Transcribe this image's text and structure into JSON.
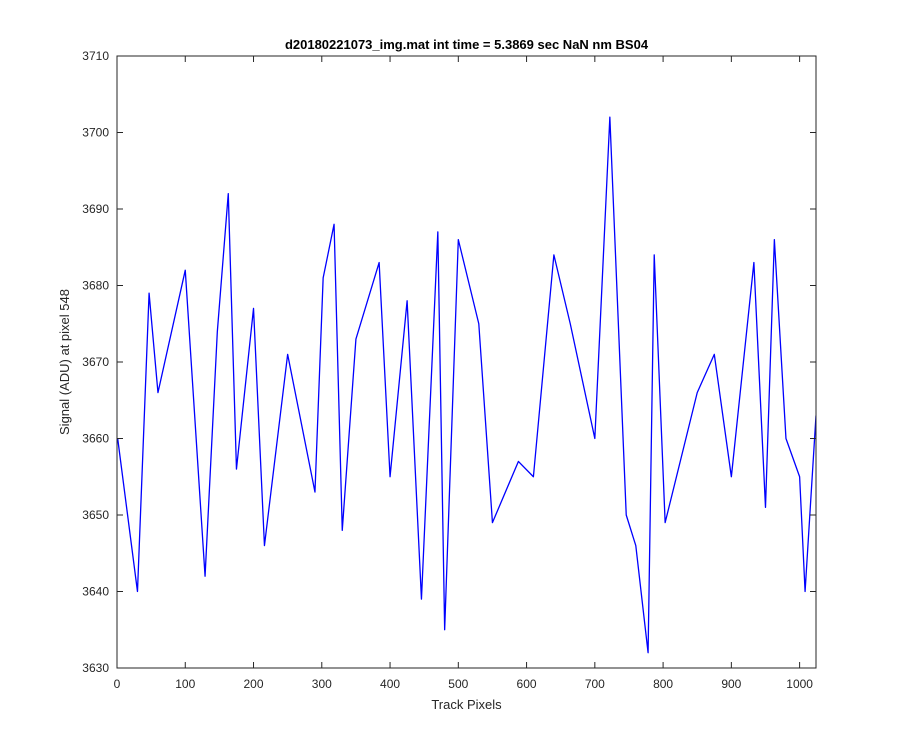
{
  "chart_data": {
    "type": "line",
    "title": "d20180221073_img.mat int time = 5.3869 sec  NaN nm BS04",
    "xlabel": "Track Pixels",
    "ylabel": "Signal (ADU) at pixel 548",
    "xlim": [
      0,
      1024
    ],
    "ylim": [
      3630,
      3710
    ],
    "xticks": [
      0,
      100,
      200,
      300,
      400,
      500,
      600,
      700,
      800,
      900,
      1000
    ],
    "yticks": [
      3630,
      3640,
      3650,
      3660,
      3670,
      3680,
      3690,
      3700,
      3710
    ],
    "grid": false,
    "legend": "none",
    "series": [
      {
        "color": "#0000ff",
        "x": [
          1,
          30,
          47,
          60,
          100,
          129,
          147,
          163,
          175,
          200,
          216,
          250,
          290,
          302,
          318,
          330,
          350,
          384,
          400,
          425,
          446,
          470,
          480,
          500,
          530,
          550,
          588,
          610,
          640,
          664,
          700,
          722,
          746,
          760,
          778,
          787,
          803,
          850,
          875,
          900,
          933,
          950,
          963,
          980,
          1000,
          1008,
          1024
        ],
        "y": [
          3660,
          3640,
          3679,
          3666,
          3682,
          3642,
          3674,
          3692,
          3656,
          3677,
          3646,
          3671,
          3653,
          3681,
          3688,
          3648,
          3673,
          3683,
          3655,
          3678,
          3639,
          3687,
          3635,
          3686,
          3675,
          3649,
          3657,
          3655,
          3684,
          3675,
          3660,
          3702,
          3650,
          3646,
          3632,
          3684,
          3649,
          3666,
          3671,
          3655,
          3683,
          3651,
          3686,
          3660,
          3655,
          3640,
          3663
        ]
      }
    ]
  }
}
